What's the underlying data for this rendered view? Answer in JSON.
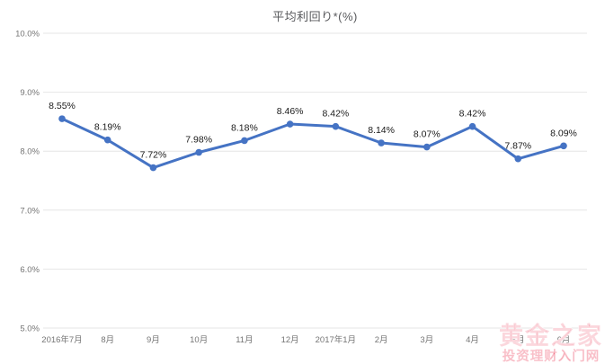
{
  "chart_data": {
    "type": "line",
    "title": "平均利回り*(%)",
    "categories": [
      "2016年7月",
      "8月",
      "9月",
      "10月",
      "11月",
      "12月",
      "2017年1月",
      "2月",
      "3月",
      "4月",
      "5月",
      "6月"
    ],
    "values": [
      8.55,
      8.19,
      7.72,
      7.98,
      8.18,
      8.46,
      8.42,
      8.14,
      8.07,
      8.42,
      7.87,
      8.09
    ],
    "point_labels": [
      "8.55%",
      "8.19%",
      "7.72%",
      "7.98%",
      "8.18%",
      "8.46%",
      "8.42%",
      "8.14%",
      "8.07%",
      "8.42%",
      "7.87%",
      "8.09%"
    ],
    "ylim": [
      5,
      10
    ],
    "y_ticks": [
      {
        "value": 10,
        "label": "10.0%"
      },
      {
        "value": 9,
        "label": "9.0%"
      },
      {
        "value": 8,
        "label": "8.0%"
      },
      {
        "value": 7,
        "label": "7.0%"
      },
      {
        "value": 6,
        "label": "6.0%"
      },
      {
        "value": 5,
        "label": "5.0%"
      }
    ],
    "grid": true,
    "legend": "none",
    "colors": {
      "line": "#4573c4",
      "point": "#4573c4",
      "grid": "#e6e6e6",
      "data_label": "#1a1a1a",
      "axis_label": "#757575",
      "title": "#58595c"
    }
  },
  "watermark": {
    "line1": "黄金之家",
    "line2": "投资理财入门网",
    "color": "#ef6279"
  }
}
